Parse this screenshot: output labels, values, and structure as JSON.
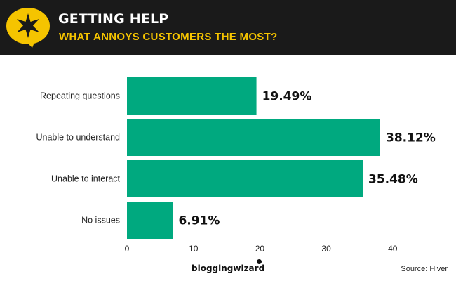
{
  "header": {
    "title": "GETTING HELP",
    "subtitle": "WHAT ANNOYS CUSTOMERS THE MOST?",
    "badge_icon": "star-speech-bubble-icon"
  },
  "colors": {
    "header_bg": "#1a1a1a",
    "accent_yellow": "#f5c400",
    "bar": "#00a97f"
  },
  "chart_data": {
    "type": "bar",
    "orientation": "horizontal",
    "categories": [
      "Repeating questions",
      "Unable to understand",
      "Unable to interact",
      "No issues"
    ],
    "values": [
      19.49,
      38.12,
      35.48,
      6.91
    ],
    "value_labels": [
      "19.49%",
      "38.12%",
      "35.48%",
      "6.91%"
    ],
    "xlim": [
      0,
      40
    ],
    "x_ticks": [
      0,
      10,
      20,
      30,
      40
    ],
    "title": "",
    "xlabel": "",
    "ylabel": "",
    "grid": false
  },
  "footer": {
    "brand": "bloggingwizard",
    "source": "Source:  Hiver"
  }
}
